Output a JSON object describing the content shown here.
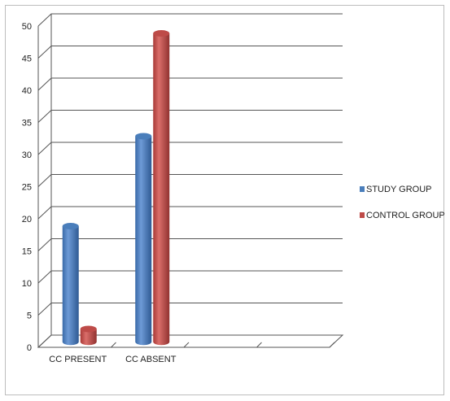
{
  "chart_data": {
    "type": "bar",
    "style": "3d-cylinder",
    "categories": [
      "CC PRESENT",
      "CC ABSENT",
      "",
      ""
    ],
    "series": [
      {
        "name": "STUDY GROUP",
        "values": [
          18,
          32,
          null,
          null
        ],
        "color": "#4a7ebb"
      },
      {
        "name": "CONTROL GROUP",
        "values": [
          2,
          48,
          null,
          null
        ],
        "color": "#be4b48"
      }
    ],
    "ylim": [
      0,
      50
    ],
    "yticks": [
      "0",
      "5",
      "10",
      "15",
      "20",
      "25",
      "30",
      "35",
      "40",
      "45",
      "50"
    ],
    "grid": true,
    "legend_position": "right"
  }
}
